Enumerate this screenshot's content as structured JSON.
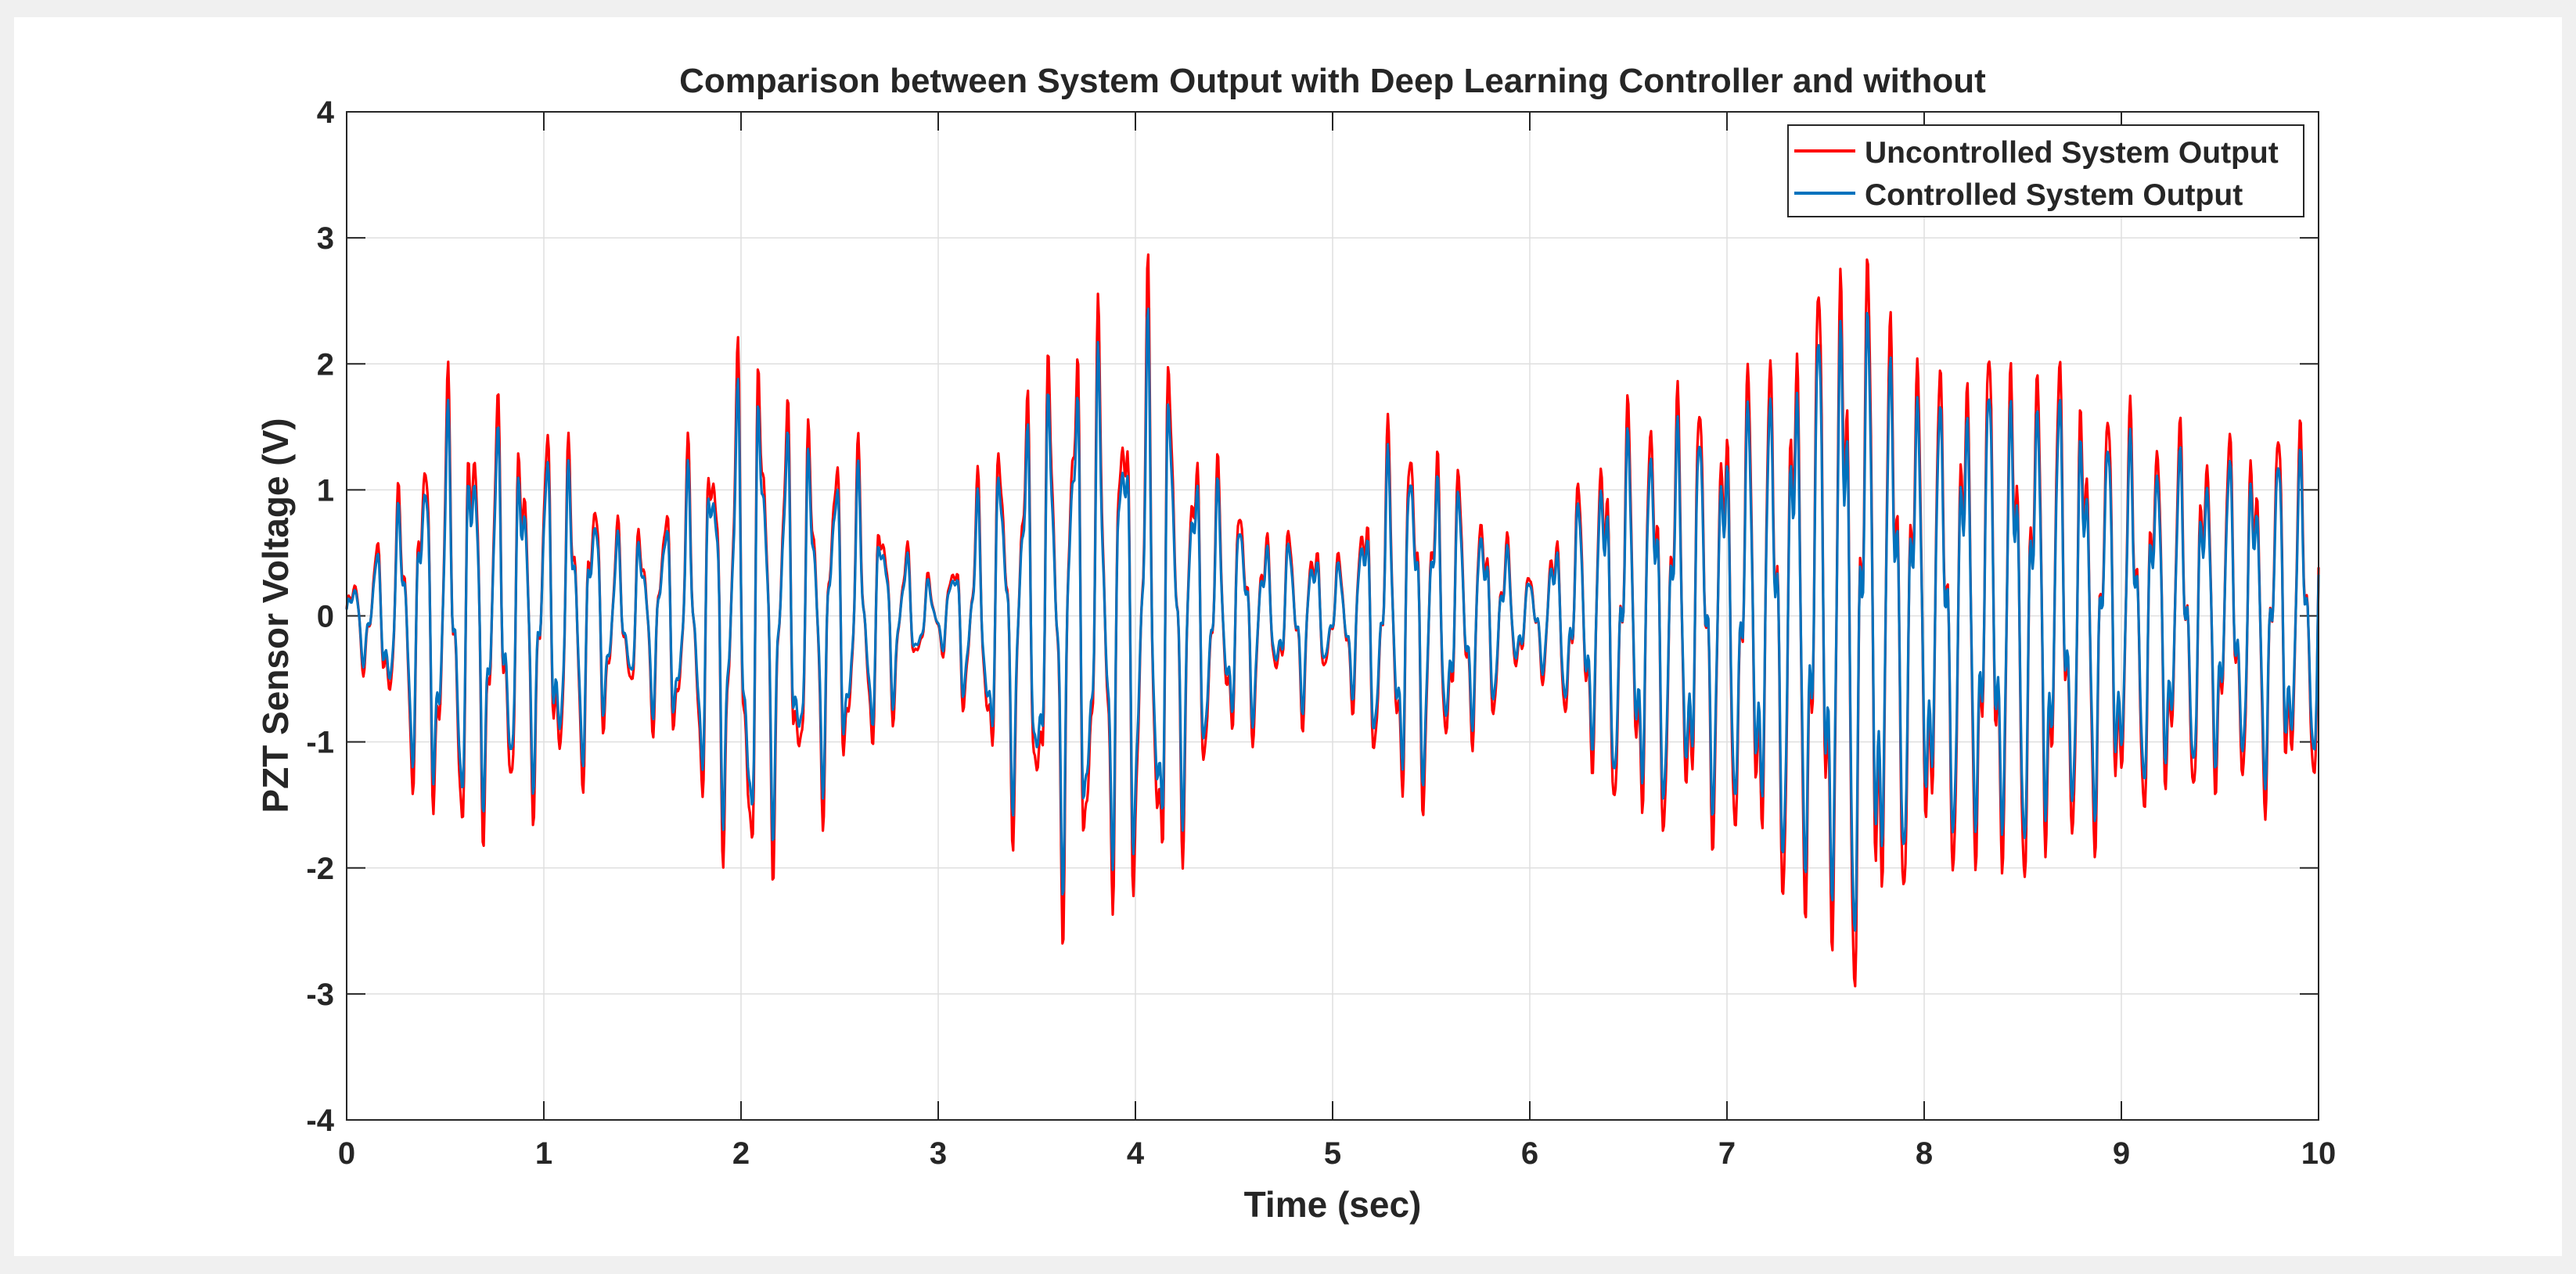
{
  "chart_data": {
    "type": "line",
    "title": "Comparison between System Output with Deep Learning Controller and without",
    "xlabel": "Time (sec)",
    "ylabel": "PZT Sensor Voltage (V)",
    "xlim": [
      0,
      10
    ],
    "ylim": [
      -4,
      4
    ],
    "xticks": [
      0,
      1,
      2,
      3,
      4,
      5,
      6,
      7,
      8,
      9,
      10
    ],
    "yticks": [
      -4,
      -3,
      -2,
      -1,
      0,
      1,
      2,
      3,
      4
    ],
    "grid": true,
    "legend_position": "top-right",
    "sample_step": 0.005,
    "envelope_points": {
      "t": [
        0,
        0.05,
        0.15,
        0.25,
        0.35,
        0.5,
        0.6,
        0.75,
        0.9,
        1.05,
        1.2,
        1.4,
        1.55,
        1.7,
        1.85,
        2.0,
        2.05,
        2.15,
        2.3,
        2.45,
        2.6,
        2.75,
        2.9,
        3.0,
        3.1,
        3.3,
        3.5,
        3.65,
        3.8,
        3.95,
        4.1,
        4.25,
        4.45,
        4.6,
        4.7,
        4.85,
        5.0,
        5.1,
        5.25,
        5.4,
        5.55,
        5.7,
        5.85,
        6.0,
        6.1,
        6.25,
        6.4,
        6.6,
        6.8,
        7.0,
        7.2,
        7.4,
        7.6,
        7.7,
        7.85,
        8.0,
        8.2,
        8.4,
        8.6,
        8.8,
        9.0,
        9.2,
        9.4,
        9.6,
        9.8,
        10.0
      ],
      "amplitude": [
        0.2,
        0.35,
        0.55,
        0.9,
        1.35,
        1.7,
        1.75,
        1.6,
        1.45,
        1.4,
        1.25,
        0.6,
        0.8,
        1.1,
        1.6,
        1.95,
        2.35,
        1.8,
        1.5,
        1.4,
        1.2,
        0.8,
        0.4,
        0.2,
        0.6,
        1.4,
        1.8,
        2.25,
        2.2,
        2.0,
        2.55,
        1.6,
        1.0,
        0.9,
        0.5,
        0.8,
        0.35,
        0.7,
        1.3,
        1.55,
        1.2,
        1.0,
        0.7,
        0.3,
        0.6,
        1.0,
        1.5,
        1.65,
        1.7,
        1.7,
        2.0,
        2.4,
        2.95,
        2.85,
        2.3,
        1.9,
        2.0,
        2.1,
        2.0,
        1.8,
        1.6,
        1.45,
        1.4,
        1.35,
        1.5,
        1.3
      ]
    },
    "series": [
      {
        "name": "Uncontrolled System Output",
        "color": "#ff0000",
        "amplitude_scale": 1.0,
        "peak_value": 3.0,
        "min_value": -3.05
      },
      {
        "name": "Controlled System Output",
        "color": "#0072bd",
        "amplitude_scale": 0.85,
        "peak_value": 2.6,
        "min_value": -2.7
      }
    ]
  }
}
